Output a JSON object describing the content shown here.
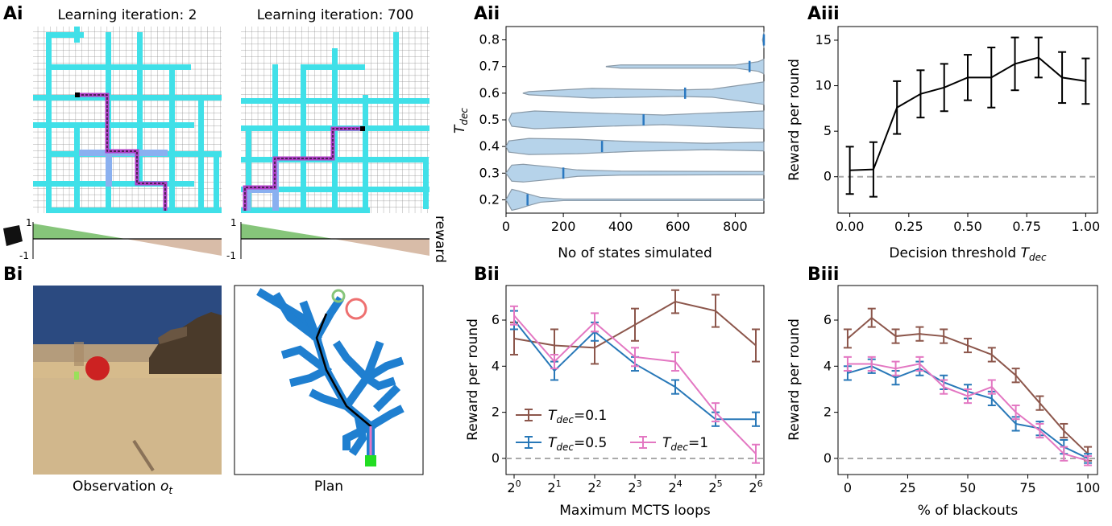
{
  "panel_labels": {
    "ai": "Ai",
    "aii": "Aii",
    "aiii": "Aiii",
    "bi": "Bi",
    "bii": "Bii",
    "biii": "Biii"
  },
  "ai": {
    "title_left": "Learning iteration: 2",
    "title_right": "Learning iteration: 700",
    "reward_axis_label": "reward",
    "reward_top": "1",
    "reward_bottom": "-1",
    "colors": {
      "grid": "#8a8a8a",
      "corridor": "#40e0e8",
      "visited": "#8ab0f0",
      "path": "#b040c8",
      "positive": "#86c57a",
      "negative": "#d8bca8"
    }
  },
  "bi": {
    "caption_obs_prefix": "Observation ",
    "caption_obs_symbol": "o",
    "caption_obs_sub": "t",
    "caption_plan": "Plan",
    "colors": {
      "sky": "#2b4a80",
      "sand": "#d6bb8c",
      "rock": "#4a3a2a",
      "ball": "#cc2222",
      "tree": "#1f7fd0",
      "goal": "#22dd22"
    }
  },
  "chart_data": [
    {
      "id": "aii",
      "type": "violin",
      "ylabel_main": "T",
      "ylabel_sub": "dec",
      "xlabel": "No of states simulated",
      "xlim": [
        0,
        900
      ],
      "ylim": [
        0.15,
        0.85
      ],
      "xticks": [
        "0",
        "200",
        "400",
        "600",
        "800"
      ],
      "yticks": [
        "0.2",
        "0.3",
        "0.4",
        "0.5",
        "0.6",
        "0.7",
        "0.8"
      ],
      "violins": [
        {
          "t": 0.2,
          "median": 75
        },
        {
          "t": 0.3,
          "median": 200
        },
        {
          "t": 0.4,
          "median": 335
        },
        {
          "t": 0.5,
          "median": 480
        },
        {
          "t": 0.6,
          "median": 625
        },
        {
          "t": 0.7,
          "median": 850
        },
        {
          "t": 0.8,
          "median": 900
        }
      ],
      "colors": {
        "fill": "#b6d3ea",
        "edge": "#8a9aa8",
        "median": "#2a78c0"
      }
    },
    {
      "id": "aiii",
      "type": "line",
      "xlabel_main": "Decision threshold ",
      "xlabel_sym": "T",
      "xlabel_sub": "dec",
      "ylabel": "Reward per round",
      "xlim": [
        -0.05,
        1.05
      ],
      "ylim": [
        -4,
        16.5
      ],
      "xticks": [
        "0.00",
        "0.25",
        "0.50",
        "0.75",
        "1.00"
      ],
      "yticks": [
        "0",
        "5",
        "10",
        "15"
      ],
      "x": [
        0.0,
        0.1,
        0.2,
        0.3,
        0.4,
        0.5,
        0.6,
        0.7,
        0.8,
        0.9,
        1.0
      ],
      "y": [
        0.7,
        0.8,
        7.6,
        9.1,
        9.8,
        10.9,
        10.9,
        12.4,
        13.1,
        10.9,
        10.5
      ],
      "err": [
        2.6,
        3.0,
        2.9,
        2.6,
        2.6,
        2.5,
        3.3,
        2.9,
        2.2,
        2.8,
        2.5
      ],
      "baseline": 0,
      "colors": {
        "line": "#000000",
        "baseline": "#aaaaaa"
      }
    },
    {
      "id": "bii",
      "type": "line",
      "xlabel": "Maximum MCTS loops",
      "ylabel": "Reward per round",
      "xlim": [
        -0.2,
        6.2
      ],
      "ylim": [
        -0.7,
        7.5
      ],
      "xticks": [
        "2^0",
        "2^1",
        "2^2",
        "2^3",
        "2^4",
        "2^5",
        "2^6"
      ],
      "yticks": [
        "0",
        "2",
        "4",
        "6"
      ],
      "x": [
        0,
        1,
        2,
        3,
        4,
        5,
        6
      ],
      "baseline": 0,
      "legend_position": "lower-left",
      "series": [
        {
          "name": "T_dec=0.1",
          "name_sym": "T",
          "name_sub": "dec",
          "name_val": "=0.1",
          "color": "#8c564b",
          "values": [
            5.2,
            4.9,
            4.8,
            5.8,
            6.8,
            6.4,
            4.9
          ],
          "err": [
            0.7,
            0.7,
            0.7,
            0.7,
            0.5,
            0.7,
            0.7
          ]
        },
        {
          "name": "T_dec=0.5",
          "name_sym": "T",
          "name_sub": "dec",
          "name_val": "=0.5",
          "color": "#2878b8",
          "values": [
            6.0,
            3.8,
            5.5,
            4.1,
            3.1,
            1.7,
            1.7
          ],
          "err": [
            0.4,
            0.4,
            0.4,
            0.3,
            0.3,
            0.3,
            0.3
          ]
        },
        {
          "name": "T_dec=1",
          "name_sym": "T",
          "name_sub": "dec",
          "name_val": "=1",
          "color": "#e377c2",
          "values": [
            6.2,
            4.2,
            5.9,
            4.4,
            4.2,
            2.0,
            0.2
          ],
          "err": [
            0.4,
            0.3,
            0.4,
            0.4,
            0.4,
            0.4,
            0.4
          ]
        }
      ]
    },
    {
      "id": "biii",
      "type": "line",
      "xlabel": "% of blackouts",
      "ylabel": "Reward per round",
      "xlim": [
        -4,
        104
      ],
      "ylim": [
        -0.7,
        7.5
      ],
      "xticks": [
        "0",
        "25",
        "50",
        "75",
        "100"
      ],
      "yticks": [
        "0",
        "2",
        "4",
        "6"
      ],
      "x": [
        0,
        10,
        20,
        30,
        40,
        50,
        60,
        70,
        80,
        90,
        100
      ],
      "baseline": 0,
      "series": [
        {
          "name": "T_dec=0.1",
          "color": "#8c564b",
          "values": [
            5.2,
            6.1,
            5.3,
            5.4,
            5.3,
            4.9,
            4.5,
            3.6,
            2.4,
            1.2,
            0.2
          ],
          "err": [
            0.4,
            0.4,
            0.3,
            0.3,
            0.3,
            0.3,
            0.3,
            0.3,
            0.3,
            0.3,
            0.3
          ]
        },
        {
          "name": "T_dec=0.5",
          "color": "#2878b8",
          "values": [
            3.7,
            4.0,
            3.5,
            3.9,
            3.3,
            2.9,
            2.6,
            1.5,
            1.3,
            0.5,
            0.0
          ],
          "err": [
            0.3,
            0.3,
            0.3,
            0.3,
            0.3,
            0.3,
            0.3,
            0.3,
            0.3,
            0.3,
            0.2
          ]
        },
        {
          "name": "T_dec=1",
          "color": "#e377c2",
          "values": [
            4.1,
            4.1,
            3.9,
            4.1,
            3.1,
            2.7,
            3.1,
            2.0,
            1.2,
            0.2,
            -0.1
          ],
          "err": [
            0.3,
            0.3,
            0.3,
            0.3,
            0.3,
            0.3,
            0.3,
            0.3,
            0.3,
            0.3,
            0.2
          ]
        }
      ]
    }
  ]
}
